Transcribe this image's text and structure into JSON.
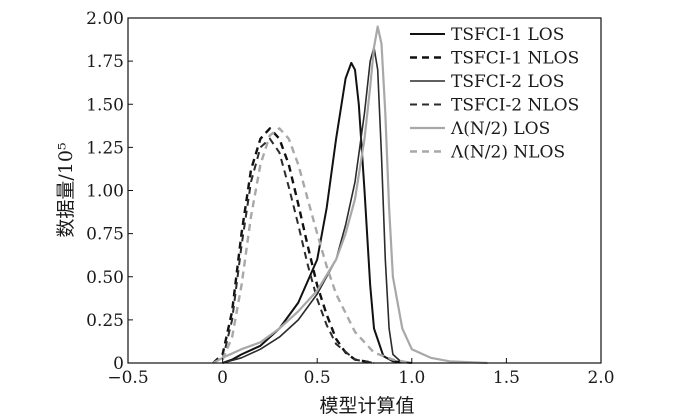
{
  "chart_data": {
    "type": "line",
    "xlabel": "模型计算值",
    "ylabel": "数据量/10⁵",
    "xlim": [
      -0.5,
      2.0
    ],
    "ylim": [
      0,
      2.0
    ],
    "x_ticks": [
      -0.5,
      0,
      0.5,
      1.0,
      1.5,
      2.0
    ],
    "x_tick_labels": [
      "−0.5",
      "0",
      "0.5",
      "1.0",
      "1.5",
      "2.0"
    ],
    "y_ticks": [
      0,
      0.25,
      0.5,
      0.75,
      1.0,
      1.25,
      1.5,
      1.75,
      2.0
    ],
    "y_tick_labels": [
      "0",
      "0.25",
      "0.50",
      "0.75",
      "1.00",
      "1.25",
      "1.50",
      "1.75",
      "2.00"
    ],
    "grid": false,
    "legend_position": "top-right",
    "series": [
      {
        "name": "TSFCI-1 LOS",
        "color": "#111111",
        "dash": "solid",
        "width": 2,
        "x": [
          0.0,
          0.05,
          0.1,
          0.2,
          0.3,
          0.4,
          0.5,
          0.55,
          0.6,
          0.65,
          0.68,
          0.7,
          0.72,
          0.75,
          0.78,
          0.8,
          0.85,
          0.9,
          1.0
        ],
        "y": [
          0.0,
          0.02,
          0.05,
          0.1,
          0.2,
          0.35,
          0.6,
          0.9,
          1.3,
          1.65,
          1.74,
          1.7,
          1.5,
          1.0,
          0.45,
          0.2,
          0.04,
          0.01,
          0.0
        ]
      },
      {
        "name": "TSFCI-1 NLOS",
        "color": "#111111",
        "dash": "dashed",
        "width": 2.4,
        "x": [
          -0.05,
          0.0,
          0.05,
          0.1,
          0.15,
          0.2,
          0.25,
          0.3,
          0.35,
          0.4,
          0.45,
          0.5,
          0.55,
          0.6,
          0.65,
          0.7,
          0.8
        ],
        "y": [
          0.0,
          0.05,
          0.3,
          0.75,
          1.12,
          1.3,
          1.36,
          1.3,
          1.15,
          0.92,
          0.68,
          0.45,
          0.28,
          0.14,
          0.06,
          0.02,
          0.0
        ]
      },
      {
        "name": "TSFCI-2 LOS",
        "color": "#2b2b2b",
        "dash": "solid",
        "width": 1.6,
        "x": [
          0.0,
          0.1,
          0.2,
          0.3,
          0.4,
          0.5,
          0.6,
          0.65,
          0.7,
          0.75,
          0.78,
          0.8,
          0.82,
          0.84,
          0.86,
          0.88,
          0.9,
          0.95
        ],
        "y": [
          0.0,
          0.03,
          0.08,
          0.15,
          0.25,
          0.4,
          0.6,
          0.8,
          1.05,
          1.45,
          1.75,
          1.83,
          1.7,
          1.2,
          0.6,
          0.2,
          0.05,
          0.0
        ]
      },
      {
        "name": "TSFCI-2 NLOS",
        "color": "#2b2b2b",
        "dash": "dashed",
        "width": 2.0,
        "x": [
          0.0,
          0.05,
          0.1,
          0.15,
          0.2,
          0.25,
          0.3,
          0.35,
          0.4,
          0.45,
          0.5,
          0.55,
          0.6,
          0.7,
          0.8
        ],
        "y": [
          0.02,
          0.25,
          0.68,
          1.05,
          1.25,
          1.3,
          1.22,
          1.02,
          0.8,
          0.57,
          0.37,
          0.22,
          0.11,
          0.02,
          0.0
        ]
      },
      {
        "name": "Λ(N/2) LOS",
        "color": "#a8a8a8",
        "dash": "solid",
        "width": 2.2,
        "x": [
          -0.05,
          0.0,
          0.1,
          0.2,
          0.3,
          0.4,
          0.5,
          0.6,
          0.65,
          0.7,
          0.75,
          0.78,
          0.8,
          0.82,
          0.84,
          0.86,
          0.88,
          0.9,
          0.95,
          1.0,
          1.1,
          1.2,
          1.4
        ],
        "y": [
          0.0,
          0.03,
          0.08,
          0.12,
          0.2,
          0.3,
          0.42,
          0.6,
          0.75,
          0.95,
          1.3,
          1.6,
          1.83,
          1.95,
          1.85,
          1.45,
          0.9,
          0.5,
          0.2,
          0.08,
          0.03,
          0.01,
          0.0
        ]
      },
      {
        "name": "Λ(N/2) NLOS",
        "color": "#a8a8a8",
        "dash": "dashed",
        "width": 2.4,
        "x": [
          0.0,
          0.05,
          0.1,
          0.15,
          0.2,
          0.25,
          0.3,
          0.35,
          0.4,
          0.45,
          0.5,
          0.55,
          0.6,
          0.7,
          0.8,
          0.9,
          1.0
        ],
        "y": [
          0.02,
          0.15,
          0.45,
          0.85,
          1.15,
          1.32,
          1.36,
          1.3,
          1.15,
          0.95,
          0.75,
          0.56,
          0.4,
          0.18,
          0.06,
          0.02,
          0.0
        ]
      }
    ]
  }
}
